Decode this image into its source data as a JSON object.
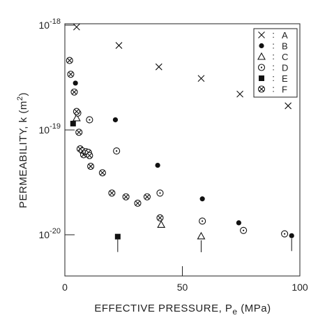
{
  "chart_data": {
    "type": "scatter",
    "xlabel": "EFFECTIVE PRESSURE, P",
    "xlabel_subscript": "e",
    "xlabel_unit": "(MPa)",
    "ylabel": "PERMEABILITY, k",
    "ylabel_unit": "(m",
    "ylabel_unit_sup": "2",
    "ylabel_unit_close": ")",
    "xlim": [
      0,
      100
    ],
    "ylim": [
      1e-20,
      1e-18
    ],
    "y_scale": "log",
    "legend_position": "top-right",
    "xticks": [
      {
        "value": 0,
        "label": "0"
      },
      {
        "value": 50,
        "label": "50"
      },
      {
        "value": 100,
        "label": "100"
      }
    ],
    "yticks": [
      {
        "value": 1e-18,
        "base": "10",
        "exp": "-18"
      },
      {
        "value": 1e-19,
        "base": "10",
        "exp": "-19"
      },
      {
        "value": 1e-20,
        "base": "10",
        "exp": "-20"
      }
    ],
    "legend_separator": ":",
    "series": [
      {
        "name": "A",
        "marker": "x",
        "points": [
          [
            5,
            9.6e-19
          ],
          [
            23,
            6.4e-19
          ],
          [
            40,
            4e-19
          ],
          [
            58,
            3.1e-19
          ],
          [
            74.5,
            2.2e-19
          ],
          [
            95,
            1.7e-19
          ]
        ]
      },
      {
        "name": "B",
        "marker": "filled-circle",
        "points": [
          [
            4.5,
            2.8e-19
          ],
          [
            21.5,
            1.25e-19
          ],
          [
            39.5,
            4.6e-20
          ],
          [
            58.5,
            2.2e-20
          ],
          [
            74,
            1.3e-20
          ],
          [
            96.5,
            9.8e-21
          ]
        ]
      },
      {
        "name": "C",
        "marker": "triangle",
        "points": [
          [
            5,
            1.3e-19
          ],
          [
            41,
            1.25e-20
          ],
          [
            58,
            9.7e-21
          ]
        ]
      },
      {
        "name": "D",
        "marker": "dotted-circle",
        "points": [
          [
            5.5,
            1.45e-19
          ],
          [
            10.5,
            1.25e-19
          ],
          [
            22,
            6.3e-20
          ],
          [
            40.5,
            2.5e-20
          ],
          [
            58.5,
            1.35e-20
          ],
          [
            76,
            1.1e-20
          ],
          [
            93.5,
            1.02e-20
          ]
        ]
      },
      {
        "name": "E",
        "marker": "filled-square",
        "points": [
          [
            3.5,
            1.15e-19
          ],
          [
            22.5,
            9.6e-21
          ]
        ]
      },
      {
        "name": "F",
        "marker": "crossed-circle",
        "points": [
          [
            2,
            4.6e-19
          ],
          [
            2.5,
            3.4e-19
          ],
          [
            4,
            2.3e-19
          ],
          [
            5,
            1.5e-19
          ],
          [
            6,
            9.5e-20
          ],
          [
            6.5,
            6.6e-20
          ],
          [
            7.5,
            6.3e-20
          ],
          [
            8,
            5.8e-20
          ],
          [
            9,
            6.2e-20
          ],
          [
            10,
            6.1e-20
          ],
          [
            10.5,
            5.7e-20
          ],
          [
            11,
            4.5e-20
          ],
          [
            16,
            3.9e-20
          ],
          [
            20,
            2.5e-20
          ],
          [
            26,
            2.3e-20
          ],
          [
            31,
            2e-20
          ],
          [
            35,
            2.3e-20
          ],
          [
            40.5,
            1.45e-20
          ]
        ]
      }
    ],
    "annotations": [
      {
        "type": "up-arrow",
        "x": 58,
        "y": 9.7e-21,
        "series": "C"
      },
      {
        "type": "stem",
        "x": 22.5,
        "y": 9.6e-21,
        "series": "E"
      },
      {
        "type": "stem",
        "x": 96.5,
        "y": 9.8e-21,
        "series": "B"
      }
    ]
  }
}
